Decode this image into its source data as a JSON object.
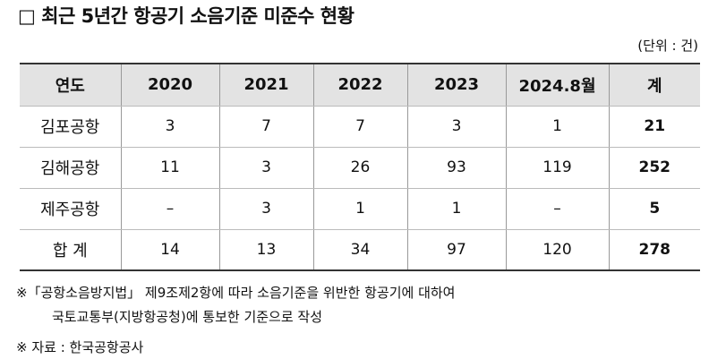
{
  "header": {
    "title": "□ 최근 5년간 항공기 소음기준 미준수 현황",
    "unit": "(단위 : 건)"
  },
  "table": {
    "columns": [
      "연도",
      "2020",
      "2021",
      "2022",
      "2023",
      "2024.8월",
      "계"
    ],
    "rows": [
      [
        "김포공항",
        3,
        7,
        7,
        3,
        1,
        21
      ],
      [
        "김해공항",
        11,
        3,
        26,
        93,
        119,
        252
      ],
      [
        "제주공항",
        "–",
        3,
        1,
        1,
        "–",
        5
      ],
      [
        "합  계",
        14,
        13,
        34,
        97,
        120,
        278
      ]
    ]
  },
  "notes": [
    "※「공항소음방지법」 제9조제2항에 따라 소음기준을 위반한 항공기에 대하여",
    "국토교통부(지방항공청)에 통보한 기준으로 작성",
    "※ 자료 : 한국공항공사"
  ]
}
